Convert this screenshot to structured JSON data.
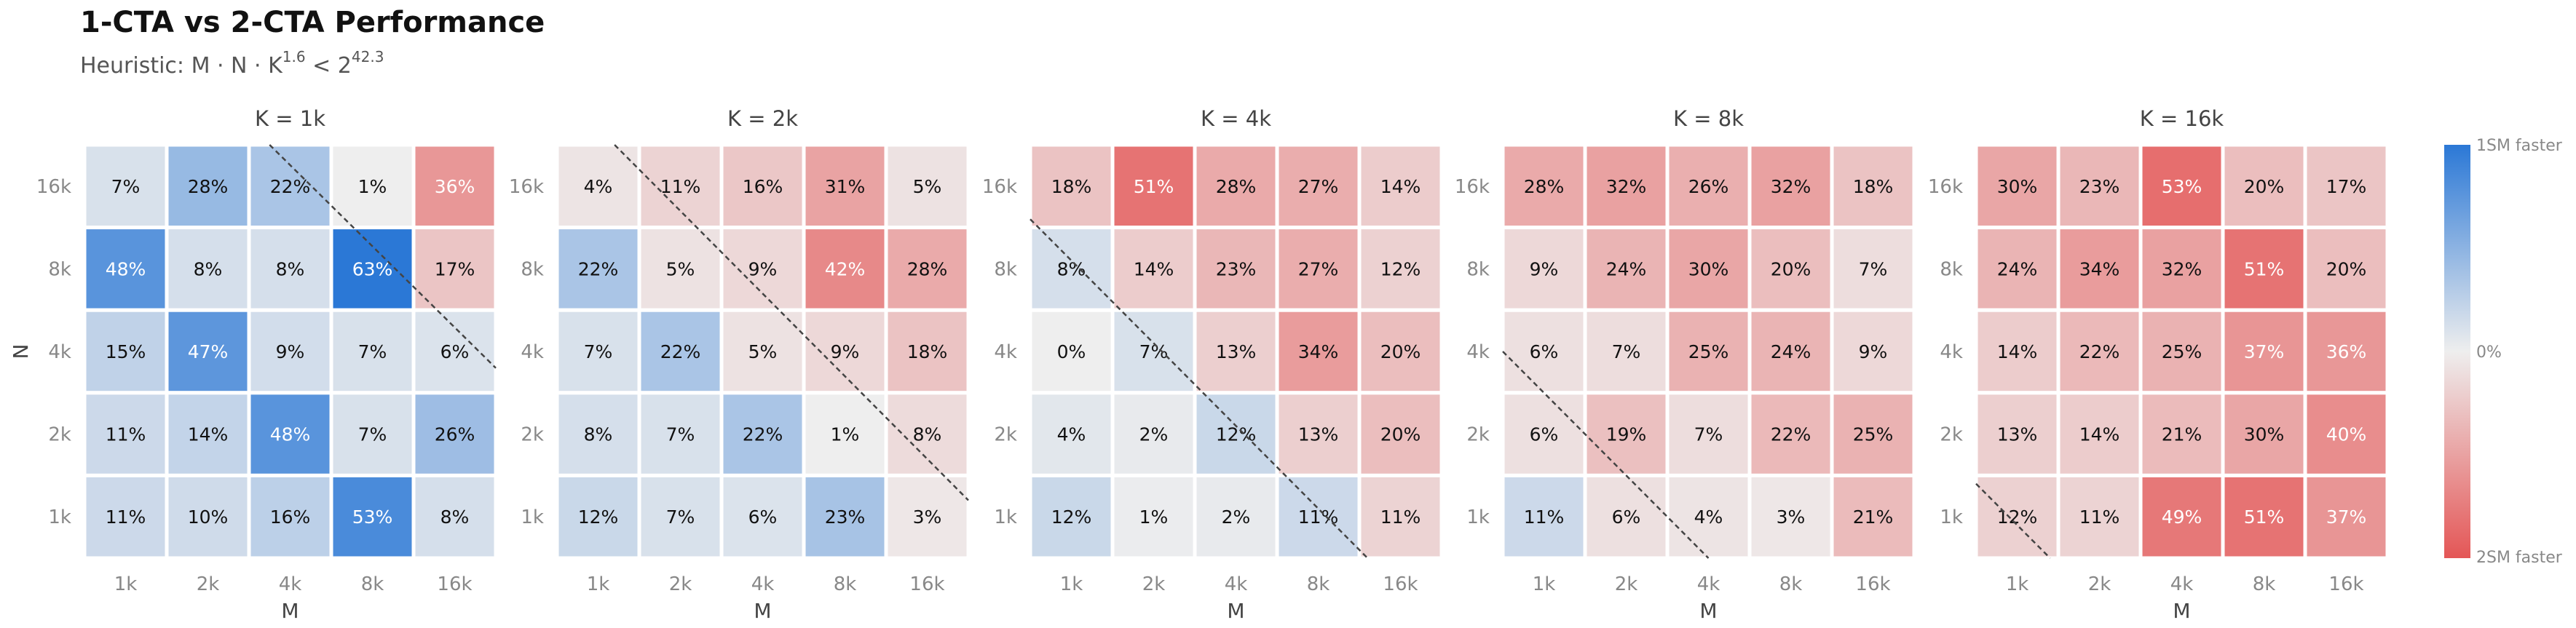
{
  "chart_data": {
    "type": "heatmap",
    "title": "1-CTA vs 2-CTA Performance",
    "subtitle": {
      "prefix": "Heuristic: M · N · K",
      "exp1": "1.6",
      "middle": " < 2",
      "exp2": "42.3"
    },
    "xlabel": "M",
    "ylabel": "N",
    "x_ticks": [
      "1k",
      "2k",
      "4k",
      "8k",
      "16k"
    ],
    "y_ticks": [
      "16k",
      "8k",
      "4k",
      "2k",
      "1k"
    ],
    "colorbar": {
      "top_label": "1SM faster",
      "mid_label": "0%",
      "bottom_label": "2SM faster",
      "colors": {
        "positive": "#2b78d6",
        "neutral": "#eeeeee",
        "negative": "#e45656"
      }
    },
    "panels": [
      {
        "title": "K = 1k",
        "sign": [
          [
            1,
            1,
            1,
            0,
            -1
          ],
          [
            1,
            1,
            1,
            1,
            -1
          ],
          [
            1,
            1,
            1,
            1,
            1
          ],
          [
            1,
            1,
            1,
            1,
            1
          ],
          [
            1,
            1,
            1,
            1,
            1
          ]
        ],
        "values": [
          [
            7,
            28,
            22,
            1,
            36
          ],
          [
            48,
            8,
            8,
            63,
            17
          ],
          [
            15,
            47,
            9,
            7,
            6
          ],
          [
            11,
            14,
            48,
            7,
            26
          ],
          [
            11,
            10,
            16,
            53,
            8
          ]
        ],
        "labels": [
          [
            "7%",
            "28%",
            "22%",
            "1%",
            "36%"
          ],
          [
            "48%",
            "8%",
            "8%",
            "63%",
            "17%"
          ],
          [
            "15%",
            "47%",
            "9%",
            "7%",
            "6%"
          ],
          [
            "11%",
            "14%",
            "48%",
            "7%",
            "26%"
          ],
          [
            "11%",
            "10%",
            "16%",
            "53%",
            "8%"
          ]
        ],
        "boundary": [
          [
            2.25,
            0
          ],
          [
            5,
            2.7
          ]
        ]
      },
      {
        "title": "K = 2k",
        "sign": [
          [
            -1,
            -1,
            -1,
            -1,
            -1
          ],
          [
            1,
            -1,
            -1,
            -1,
            -1
          ],
          [
            1,
            1,
            -1,
            -1,
            -1
          ],
          [
            1,
            1,
            1,
            0,
            -1
          ],
          [
            1,
            1,
            1,
            1,
            -1
          ]
        ],
        "values": [
          [
            4,
            11,
            16,
            31,
            5
          ],
          [
            22,
            5,
            9,
            42,
            28
          ],
          [
            7,
            22,
            5,
            9,
            18
          ],
          [
            8,
            7,
            22,
            1,
            8
          ],
          [
            12,
            7,
            6,
            23,
            3
          ]
        ],
        "labels": [
          [
            "4%",
            "11%",
            "16%",
            "31%",
            "5%"
          ],
          [
            "22%",
            "5%",
            "9%",
            "42%",
            "28%"
          ],
          [
            "7%",
            "22%",
            "5%",
            "9%",
            "18%"
          ],
          [
            "8%",
            "7%",
            "22%",
            "1%",
            "8%"
          ],
          [
            "12%",
            "7%",
            "6%",
            "23%",
            "3%"
          ]
        ],
        "boundary": [
          [
            0.7,
            0
          ],
          [
            5,
            4.3
          ]
        ]
      },
      {
        "title": "K = 4k",
        "sign": [
          [
            -1,
            -1,
            -1,
            -1,
            -1
          ],
          [
            1,
            -1,
            -1,
            -1,
            -1
          ],
          [
            0,
            1,
            -1,
            -1,
            -1
          ],
          [
            1,
            1,
            1,
            -1,
            -1
          ],
          [
            1,
            1,
            1,
            1,
            -1
          ]
        ],
        "values": [
          [
            18,
            51,
            28,
            27,
            14
          ],
          [
            8,
            14,
            23,
            27,
            12
          ],
          [
            0,
            7,
            13,
            34,
            20
          ],
          [
            4,
            2,
            12,
            13,
            20
          ],
          [
            12,
            1,
            2,
            11,
            11
          ]
        ],
        "labels": [
          [
            "18%",
            "51%",
            "28%",
            "27%",
            "14%"
          ],
          [
            "8%",
            "14%",
            "23%",
            "27%",
            "12%"
          ],
          [
            "0%",
            "7%",
            "13%",
            "34%",
            "20%"
          ],
          [
            "4%",
            "2%",
            "12%",
            "13%",
            "20%"
          ],
          [
            "12%",
            "1%",
            "2%",
            "11%",
            "11%"
          ]
        ],
        "boundary": [
          [
            0,
            0.9
          ],
          [
            4.1,
            5
          ]
        ]
      },
      {
        "title": "K = 8k",
        "sign": [
          [
            -1,
            -1,
            -1,
            -1,
            -1
          ],
          [
            -1,
            -1,
            -1,
            -1,
            -1
          ],
          [
            -1,
            -1,
            -1,
            -1,
            -1
          ],
          [
            -1,
            -1,
            -1,
            -1,
            -1
          ],
          [
            1,
            -1,
            -1,
            -1,
            -1
          ]
        ],
        "values": [
          [
            28,
            32,
            26,
            32,
            18
          ],
          [
            9,
            24,
            30,
            20,
            7
          ],
          [
            6,
            7,
            25,
            24,
            9
          ],
          [
            6,
            19,
            7,
            22,
            25
          ],
          [
            11,
            6,
            4,
            3,
            21
          ]
        ],
        "labels": [
          [
            "28%",
            "32%",
            "26%",
            "32%",
            "18%"
          ],
          [
            "9%",
            "24%",
            "30%",
            "20%",
            "7%"
          ],
          [
            "6%",
            "7%",
            "25%",
            "24%",
            "9%"
          ],
          [
            "6%",
            "19%",
            "7%",
            "22%",
            "25%"
          ],
          [
            "11%",
            "6%",
            "4%",
            "3%",
            "21%"
          ]
        ],
        "boundary": [
          [
            0,
            2.5
          ],
          [
            2.5,
            5
          ]
        ]
      },
      {
        "title": "K = 16k",
        "sign": [
          [
            -1,
            -1,
            -1,
            -1,
            -1
          ],
          [
            -1,
            -1,
            -1,
            -1,
            -1
          ],
          [
            -1,
            -1,
            -1,
            -1,
            -1
          ],
          [
            -1,
            -1,
            -1,
            -1,
            -1
          ],
          [
            -1,
            -1,
            -1,
            -1,
            -1
          ]
        ],
        "values": [
          [
            30,
            23,
            53,
            20,
            17
          ],
          [
            24,
            34,
            32,
            51,
            20
          ],
          [
            14,
            22,
            25,
            37,
            36
          ],
          [
            13,
            14,
            21,
            30,
            40
          ],
          [
            12,
            11,
            49,
            51,
            37
          ]
        ],
        "labels": [
          [
            "30%",
            "23%",
            "53%",
            "20%",
            "17%"
          ],
          [
            "24%",
            "34%",
            "32%",
            "51%",
            "20%"
          ],
          [
            "14%",
            "22%",
            "25%",
            "37%",
            "36%"
          ],
          [
            "13%",
            "14%",
            "21%",
            "30%",
            "40%"
          ],
          [
            "12%",
            "11%",
            "49%",
            "51%",
            "37%"
          ]
        ],
        "boundary": [
          [
            0,
            4.1
          ],
          [
            0.9,
            5
          ]
        ]
      }
    ]
  }
}
